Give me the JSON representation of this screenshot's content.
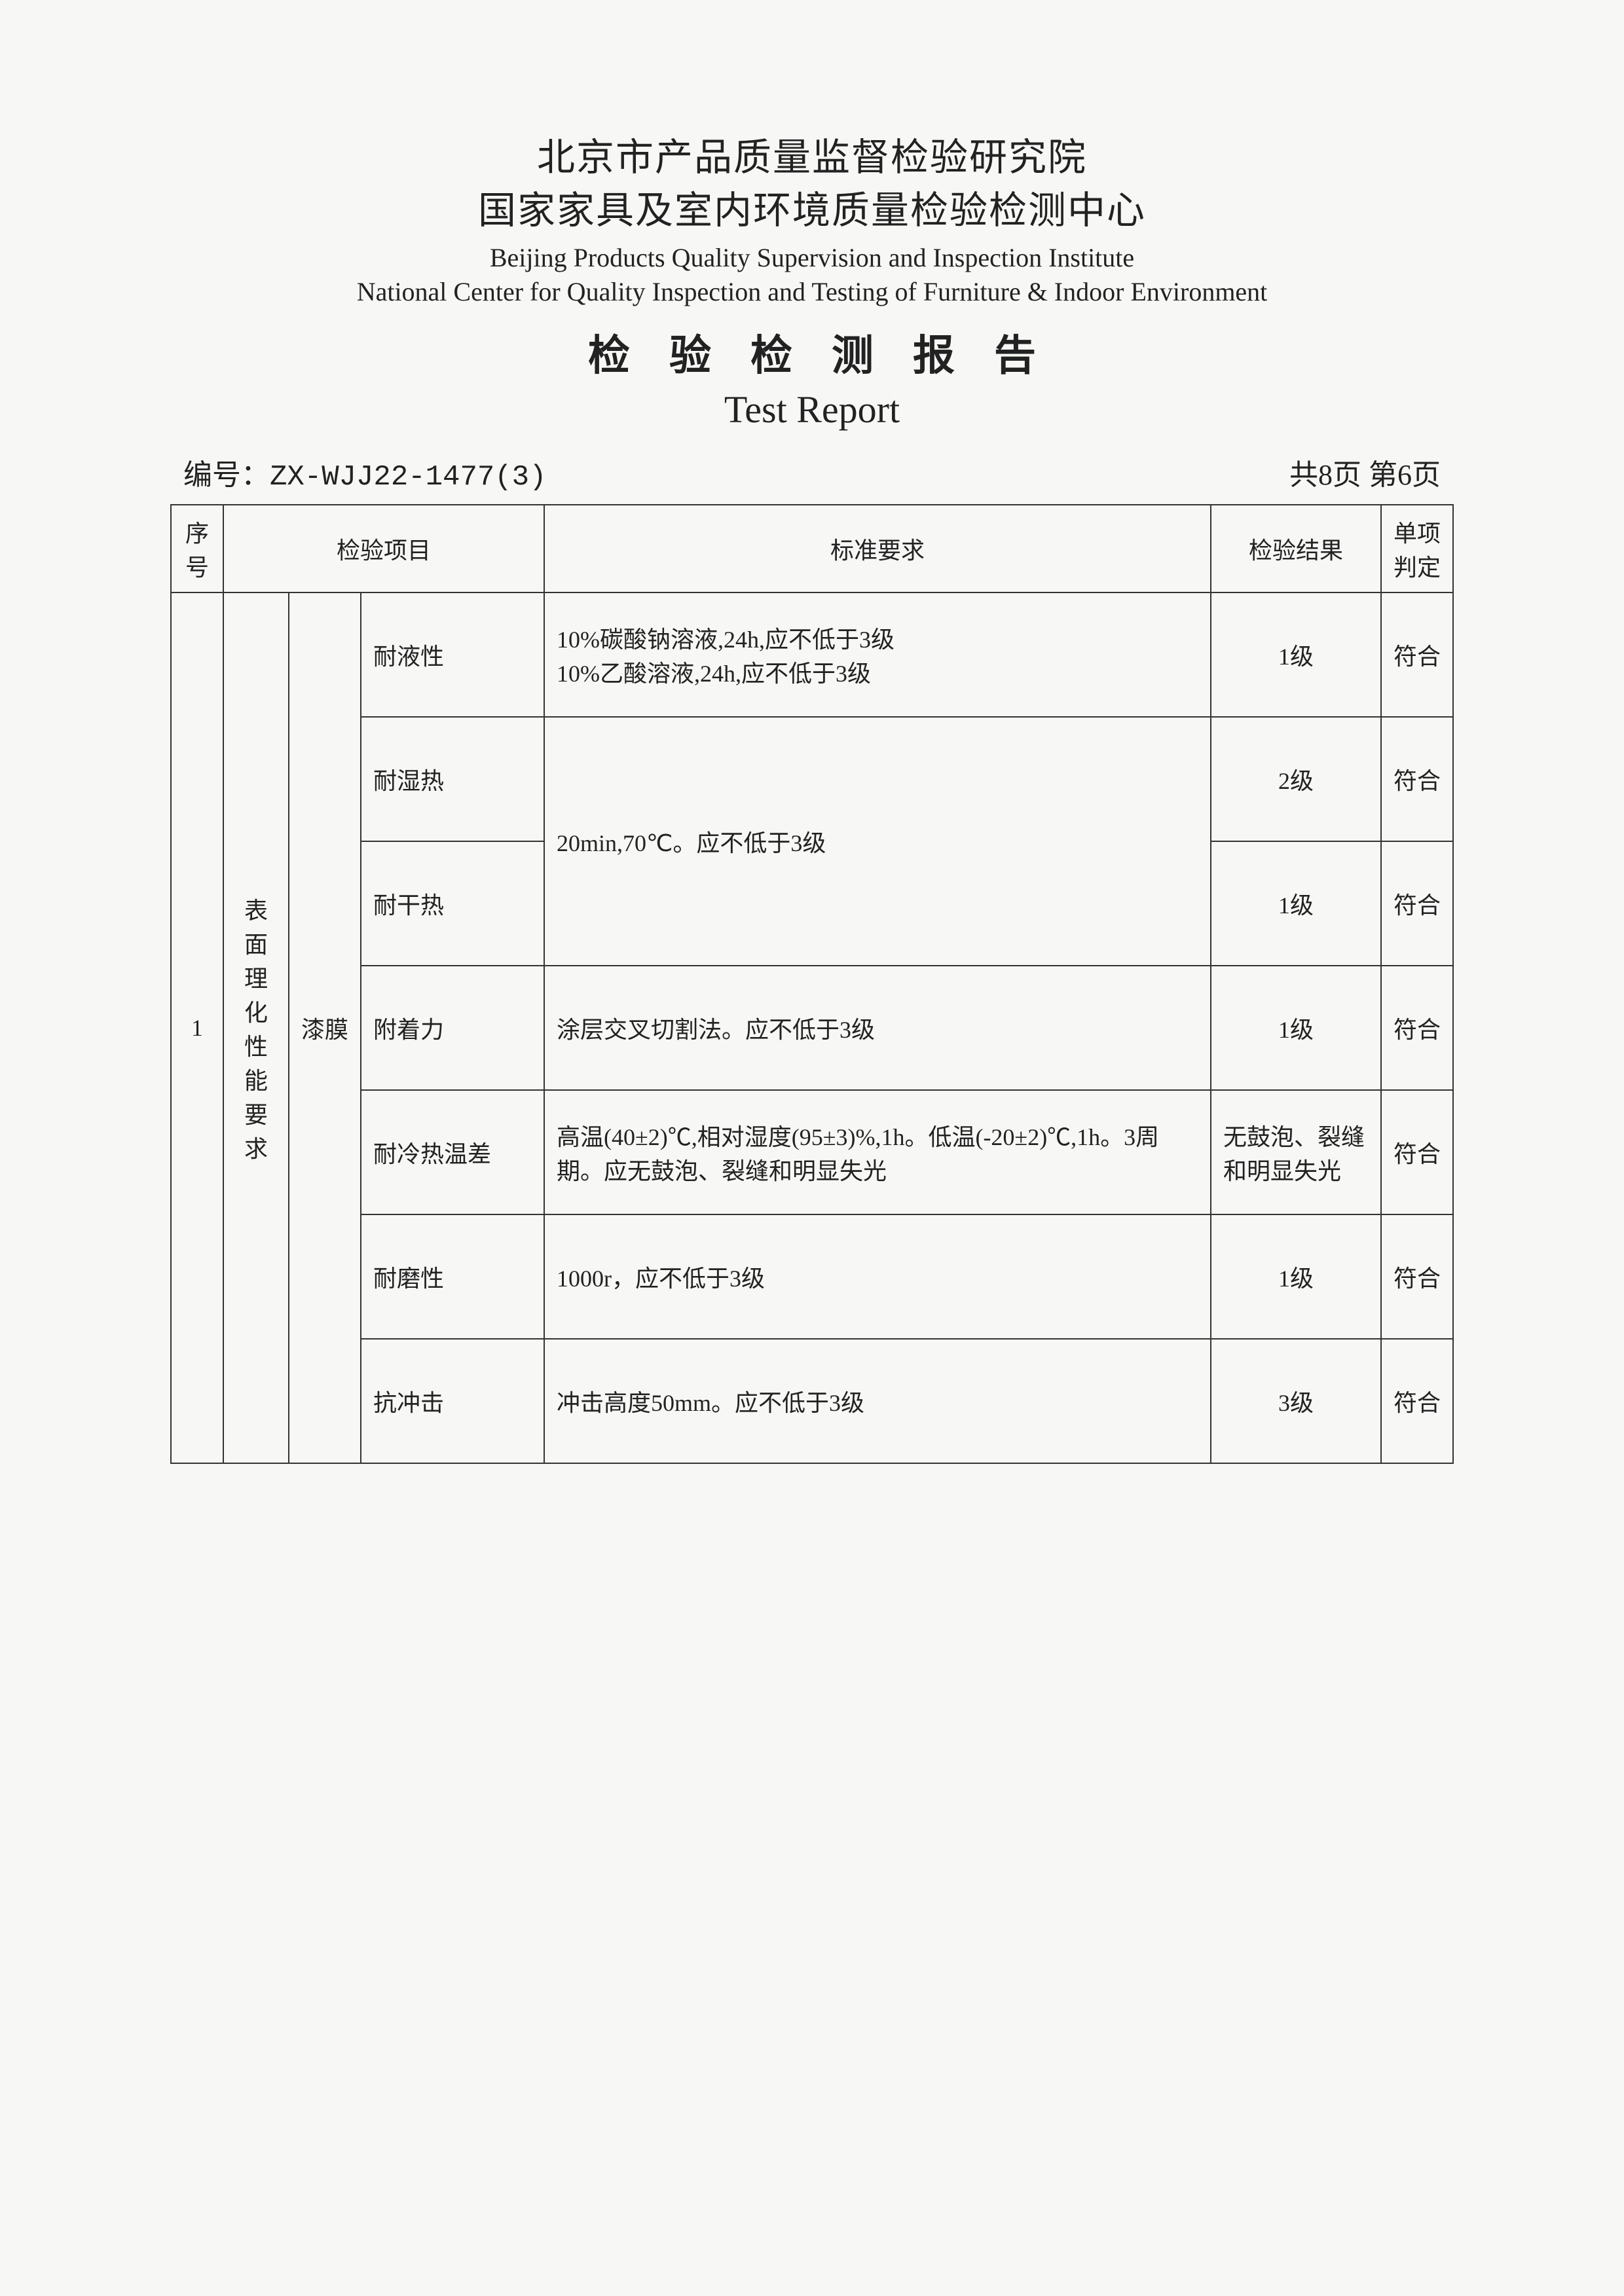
{
  "header": {
    "org_cn_1": "北京市产品质量监督检验研究院",
    "org_cn_2": "国家家具及室内环境质量检验检测中心",
    "org_en_1": "Beijing Products Quality Supervision and Inspection Institute",
    "org_en_2": "National Center for Quality Inspection and Testing of Furniture &  Indoor Environment",
    "report_title_cn": "检验检测报告",
    "report_title_en": "Test Report"
  },
  "meta": {
    "label_bianhao": "编号：",
    "code": "ZX-WJJ22-1477(3)",
    "page_info": "共8页  第6页"
  },
  "table": {
    "headers": {
      "seq": "序号",
      "item": "检验项目",
      "requirement": "标准要求",
      "result": "检验结果",
      "judge": "单项判定"
    },
    "seq_value": "1",
    "group_label": "表面理化性能要求",
    "sub_label": "漆膜",
    "rows": [
      {
        "name": "耐液性",
        "requirement": "10%碳酸钠溶液,24h,应不低于3级\n10%乙酸溶液,24h,应不低于3级",
        "result": "1级",
        "judge": "符合"
      },
      {
        "name": "耐湿热",
        "requirement_shared": "20min,70℃。应不低于3级",
        "result": "2级",
        "judge": "符合"
      },
      {
        "name": "耐干热",
        "result": "1级",
        "judge": "符合"
      },
      {
        "name": "附着力",
        "requirement": "涂层交叉切割法。应不低于3级",
        "result": "1级",
        "judge": "符合"
      },
      {
        "name": "耐冷热温差",
        "requirement": "高温(40±2)℃,相对湿度(95±3)%,1h。低温(-20±2)℃,1h。3周期。应无鼓泡、裂缝和明显失光",
        "result": "无鼓泡、裂缝和明显失光",
        "judge": "符合"
      },
      {
        "name": "耐磨性",
        "requirement": "1000r，应不低于3级",
        "result": "1级",
        "judge": "符合"
      },
      {
        "name": "抗冲击",
        "requirement": "冲击高度50mm。应不低于3级",
        "result": "3级",
        "judge": "符合"
      }
    ]
  }
}
